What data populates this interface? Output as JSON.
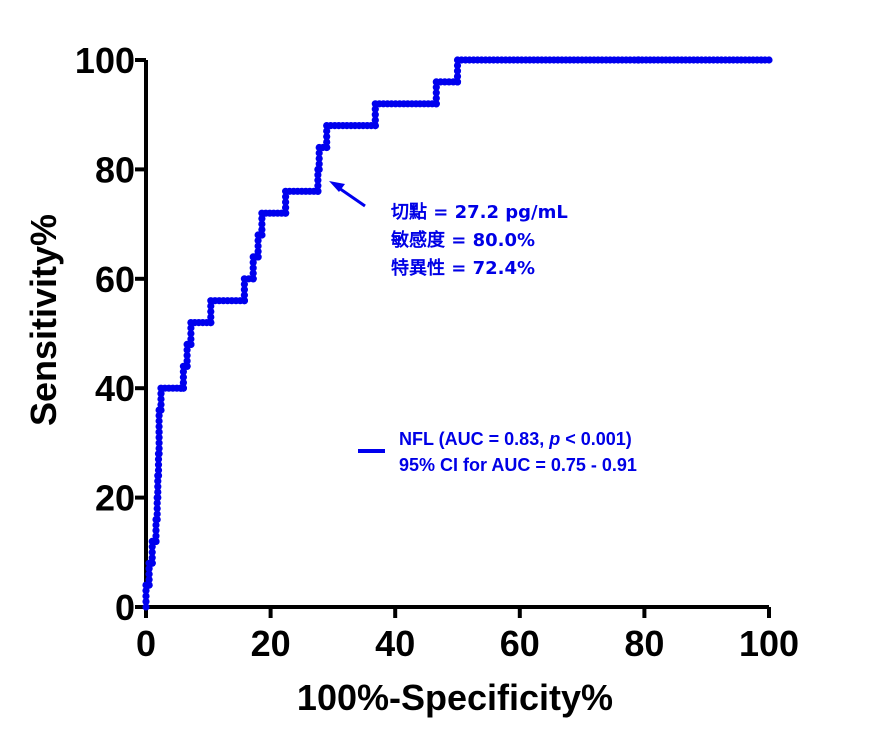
{
  "chart_data": {
    "type": "line",
    "xlabel": "100%-Specificity%",
    "ylabel": "Sensitivity%",
    "xlim": [
      0,
      100
    ],
    "ylim": [
      0,
      100
    ],
    "xticks": [
      0,
      20,
      40,
      60,
      80,
      100
    ],
    "yticks": [
      0,
      20,
      40,
      60,
      80,
      100
    ],
    "grid": false,
    "legend_position": "center-right",
    "series_color": "#0000ee",
    "series": [
      {
        "name": "NFL (AUC = 0.83, p < 0.001)",
        "legend_line2": "95% CI for AUC = 0.75 - 0.91",
        "style": "step line with circle markers",
        "x": [
          0,
          0.5,
          1.0,
          1.6,
          1.8,
          1.9,
          2.0,
          2.1,
          2.1,
          2.2,
          2.3,
          2.4,
          5.6,
          6.0,
          6.6,
          7.2,
          10.4,
          15.8,
          17.2,
          17.6,
          18.0,
          18.6,
          22.4,
          27.6,
          27.8,
          29.0,
          36.8,
          46.6,
          50.0,
          79.0,
          100
        ],
        "y": [
          0,
          4,
          8,
          12,
          16,
          20,
          24,
          28,
          32,
          36,
          36,
          36,
          40,
          40,
          44,
          48,
          52,
          56,
          60,
          64,
          64,
          68,
          72,
          76,
          80,
          84,
          88,
          92,
          96,
          100,
          100
        ]
      }
    ],
    "annotation": {
      "point": [
        27.6,
        80
      ],
      "lines": [
        "切點 = 27.2 pg/mL",
        "敏感度 = 80.0%",
        "特異性 = 72.4%"
      ]
    },
    "legend": {
      "line1_prefix": "NFL (AUC = 0.83, ",
      "line1_p": "p",
      "line1_suffix": " < 0.001)",
      "line2": "95% CI for AUC = 0.75 - 0.91"
    }
  }
}
